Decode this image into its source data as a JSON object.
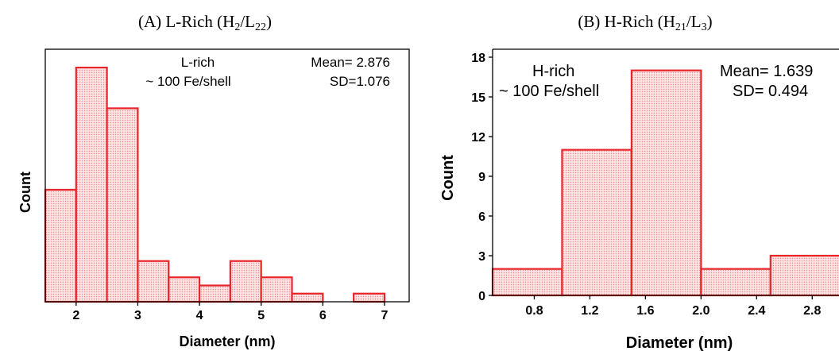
{
  "chart_data": [
    {
      "type": "bar",
      "title_main": "(A) L-Rich (H",
      "title_sub1": "2",
      "title_mid": "/L",
      "title_sub2": "22",
      "title_end": ")",
      "xlabel": "Diameter (nm)",
      "ylabel": "Count",
      "xlim": [
        1.5,
        7.4
      ],
      "ylim": [
        0,
        12.4
      ],
      "xticks": [
        2,
        3,
        4,
        5,
        6,
        7
      ],
      "yticks_shown": false,
      "bin_width": 0.5,
      "bins": [
        {
          "x0": 1.5,
          "x1": 2.0,
          "count": 5.5
        },
        {
          "x0": 2.0,
          "x1": 2.5,
          "count": 11.5
        },
        {
          "x0": 2.5,
          "x1": 3.0,
          "count": 9.5
        },
        {
          "x0": 3.0,
          "x1": 3.5,
          "count": 2.0
        },
        {
          "x0": 3.5,
          "x1": 4.0,
          "count": 1.2
        },
        {
          "x0": 4.0,
          "x1": 4.5,
          "count": 0.8
        },
        {
          "x0": 4.5,
          "x1": 5.0,
          "count": 2.0
        },
        {
          "x0": 5.0,
          "x1": 5.5,
          "count": 1.2
        },
        {
          "x0": 5.5,
          "x1": 6.0,
          "count": 0.4
        },
        {
          "x0": 6.5,
          "x1": 7.0,
          "count": 0.4
        }
      ],
      "annotation_left": [
        "L-rich",
        "~ 100 Fe/shell"
      ],
      "annotation_right": [
        "Mean= 2.876",
        "SD=1.076"
      ]
    },
    {
      "type": "bar",
      "title_main": "(B) H-Rich (H",
      "title_sub1": "21",
      "title_mid": "/L",
      "title_sub2": "3",
      "title_end": ")",
      "xlabel": "Diameter (nm)",
      "ylabel": "Count",
      "xlim": [
        0.5,
        3.05
      ],
      "ylim": [
        0,
        18.6
      ],
      "xticks": [
        "0.8",
        "1.2",
        "1.6",
        "2.0",
        "2.4",
        "2.8"
      ],
      "yticks": [
        0,
        3,
        6,
        9,
        12,
        15,
        18
      ],
      "bins": [
        {
          "x0": 0.5,
          "x1": 1.0,
          "count": 2
        },
        {
          "x0": 1.0,
          "x1": 1.5,
          "count": 11
        },
        {
          "x0": 1.5,
          "x1": 2.0,
          "count": 17
        },
        {
          "x0": 2.0,
          "x1": 2.5,
          "count": 2
        },
        {
          "x0": 2.5,
          "x1": 3.0,
          "count": 3
        }
      ],
      "annotation_left": [
        "H-rich",
        "~ 100 Fe/shell"
      ],
      "annotation_right": [
        "Mean= 1.639",
        "SD= 0.494"
      ]
    }
  ]
}
